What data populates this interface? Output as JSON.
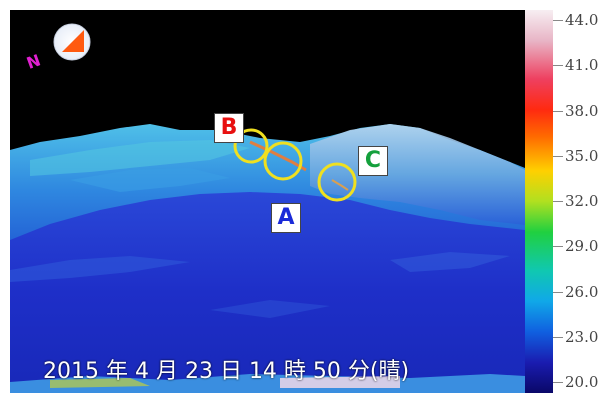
{
  "image": {
    "compass_letter": "N",
    "labels": {
      "a": "A",
      "b": "B",
      "c": "C"
    },
    "timestamp": "2015 年 4 月 23 日 14 時 50 分(晴)"
  },
  "colors": {
    "label_b": "#e81010",
    "label_c": "#14a03c",
    "label_a": "#1a2ad8",
    "marker_circle": "#f0e020",
    "compass_arrow": "#ff5a10",
    "compass_letter": "#e020d0"
  },
  "scale": {
    "unit": "",
    "ticks": [
      {
        "label": "44.0",
        "value": 44.0
      },
      {
        "label": "41.0",
        "value": 41.0
      },
      {
        "label": "38.0",
        "value": 38.0
      },
      {
        "label": "35.0",
        "value": 35.0
      },
      {
        "label": "32.0",
        "value": 32.0
      },
      {
        "label": "29.0",
        "value": 29.0
      },
      {
        "label": "26.0",
        "value": 26.0
      },
      {
        "label": "23.0",
        "value": 23.0
      },
      {
        "label": "20.0",
        "value": 20.0
      }
    ]
  }
}
